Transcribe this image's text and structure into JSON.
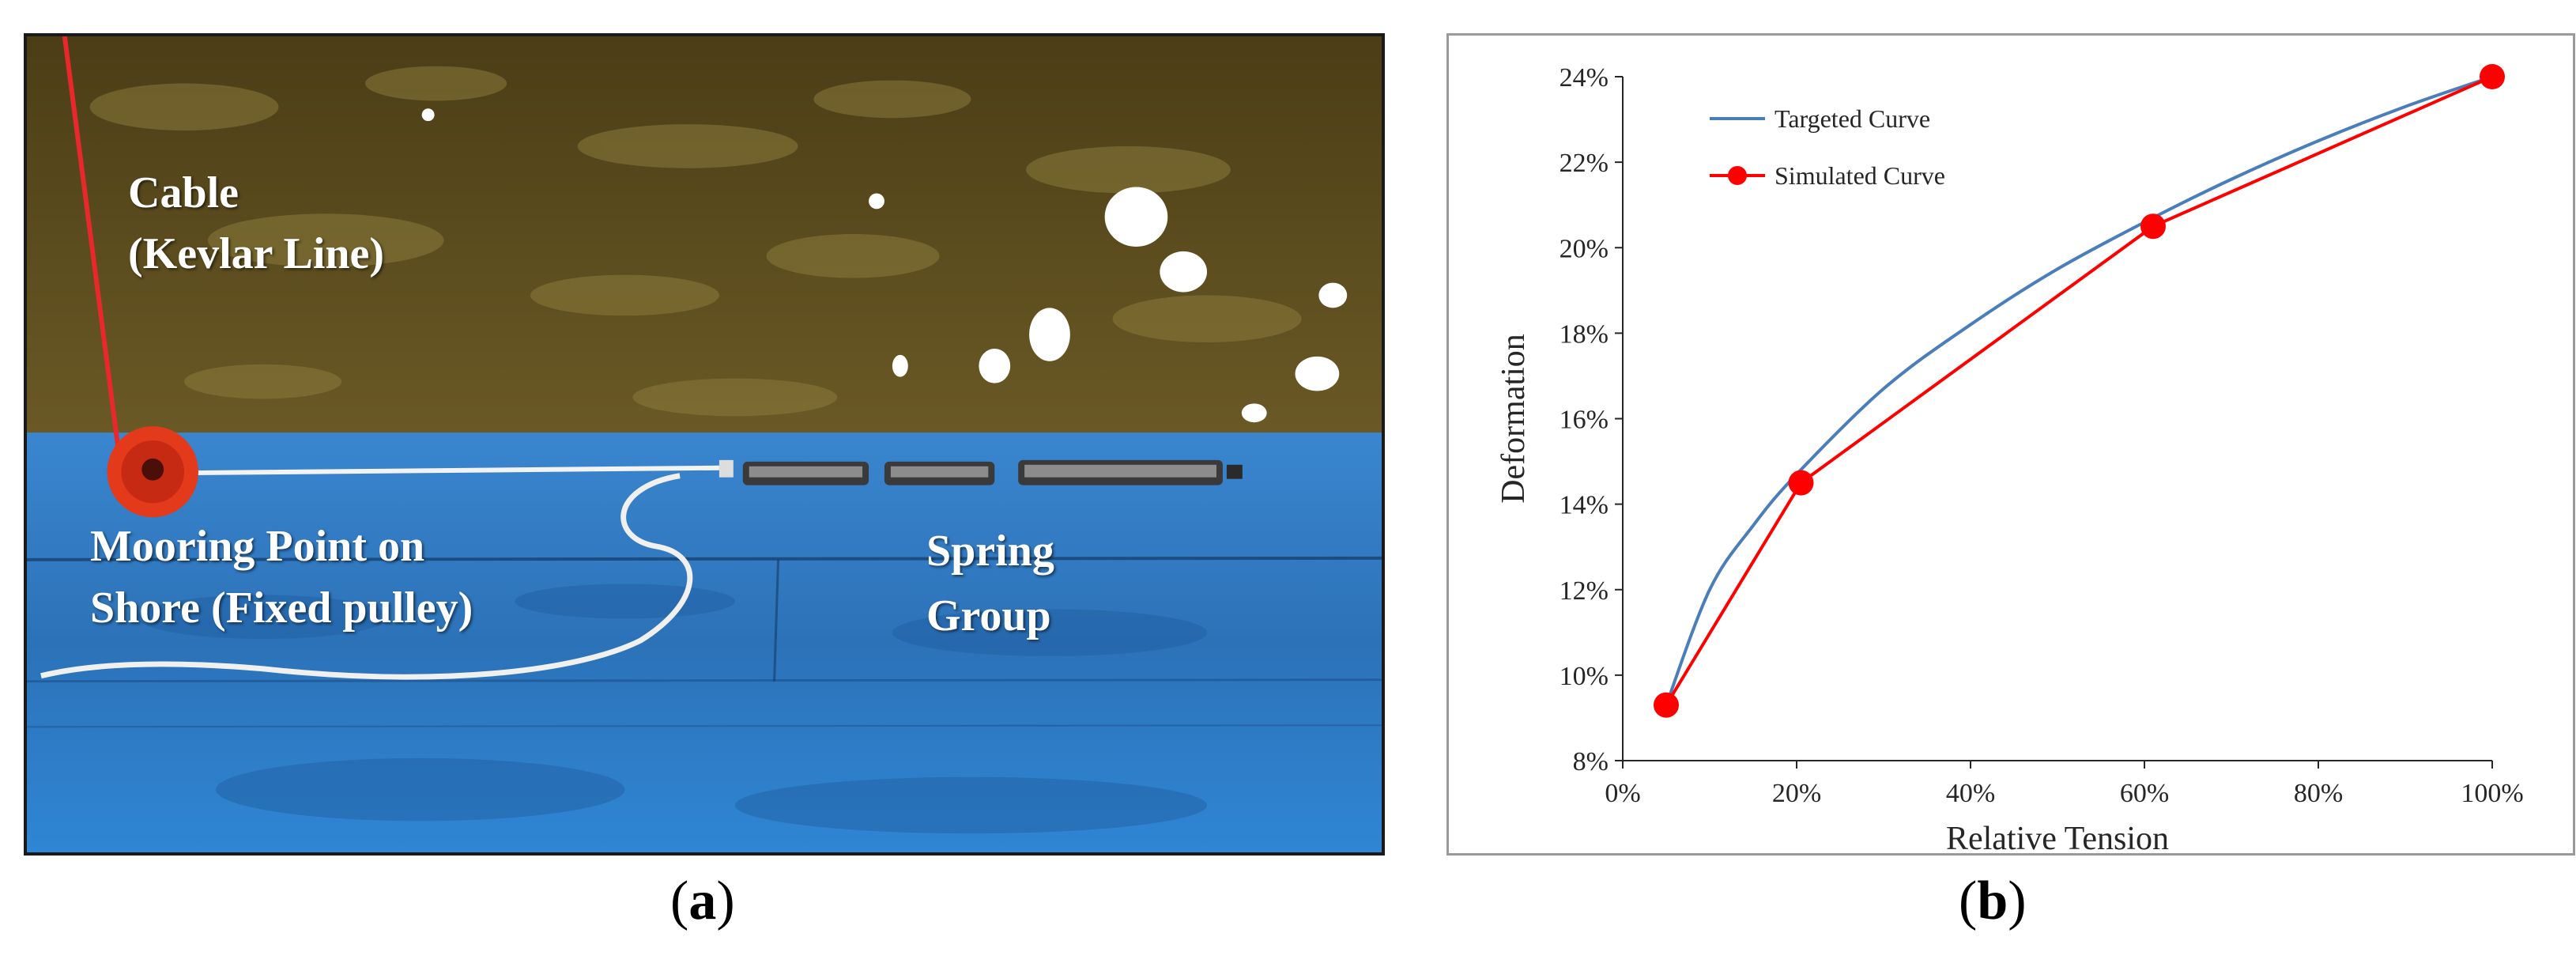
{
  "photo": {
    "labels": {
      "cable_line1": "Cable",
      "cable_line2": "(Kevlar Line)",
      "mooring_line1": "Mooring Point on",
      "mooring_line2": "Shore (Fixed pulley)",
      "spring_line1": "Spring",
      "spring_line2": "Group"
    },
    "colors": {
      "water": "#5a4a1c",
      "pool_edge": "#2f7fc8",
      "cable": "#e8282a",
      "pulley": "#e43a1c"
    }
  },
  "captions": {
    "a_open": "(",
    "a_letter": "a",
    "a_close": ")",
    "b_open": "(",
    "b_letter": "b",
    "b_close": ")"
  },
  "chart_data": {
    "type": "line",
    "xlabel": "Relative Tension",
    "ylabel": "Deformation",
    "xlim": [
      0,
      100
    ],
    "ylim": [
      8,
      24
    ],
    "x_ticks": [
      0,
      20,
      40,
      60,
      80,
      100
    ],
    "y_ticks": [
      8,
      10,
      12,
      14,
      16,
      18,
      20,
      22,
      24
    ],
    "x_tick_labels": [
      "0%",
      "20%",
      "40%",
      "60%",
      "80%",
      "100%"
    ],
    "y_tick_labels": [
      "8%",
      "10%",
      "12%",
      "14%",
      "16%",
      "18%",
      "20%",
      "22%",
      "24%"
    ],
    "grid": false,
    "legend_position": "top-left",
    "series": [
      {
        "name": "Targeted Curve",
        "color": "#4a7ebb",
        "marker": false,
        "x": [
          5,
          10,
          15,
          20,
          30,
          40,
          50,
          61,
          70,
          80,
          90,
          100
        ],
        "y": [
          9.3,
          12.0,
          13.5,
          14.7,
          16.7,
          18.2,
          19.5,
          20.7,
          21.6,
          22.5,
          23.3,
          24.0
        ]
      },
      {
        "name": "Simulated Curve",
        "color": "#ff0000",
        "marker": true,
        "x": [
          5,
          20.5,
          61,
          100
        ],
        "y": [
          9.3,
          14.5,
          20.5,
          24.0
        ]
      }
    ]
  }
}
